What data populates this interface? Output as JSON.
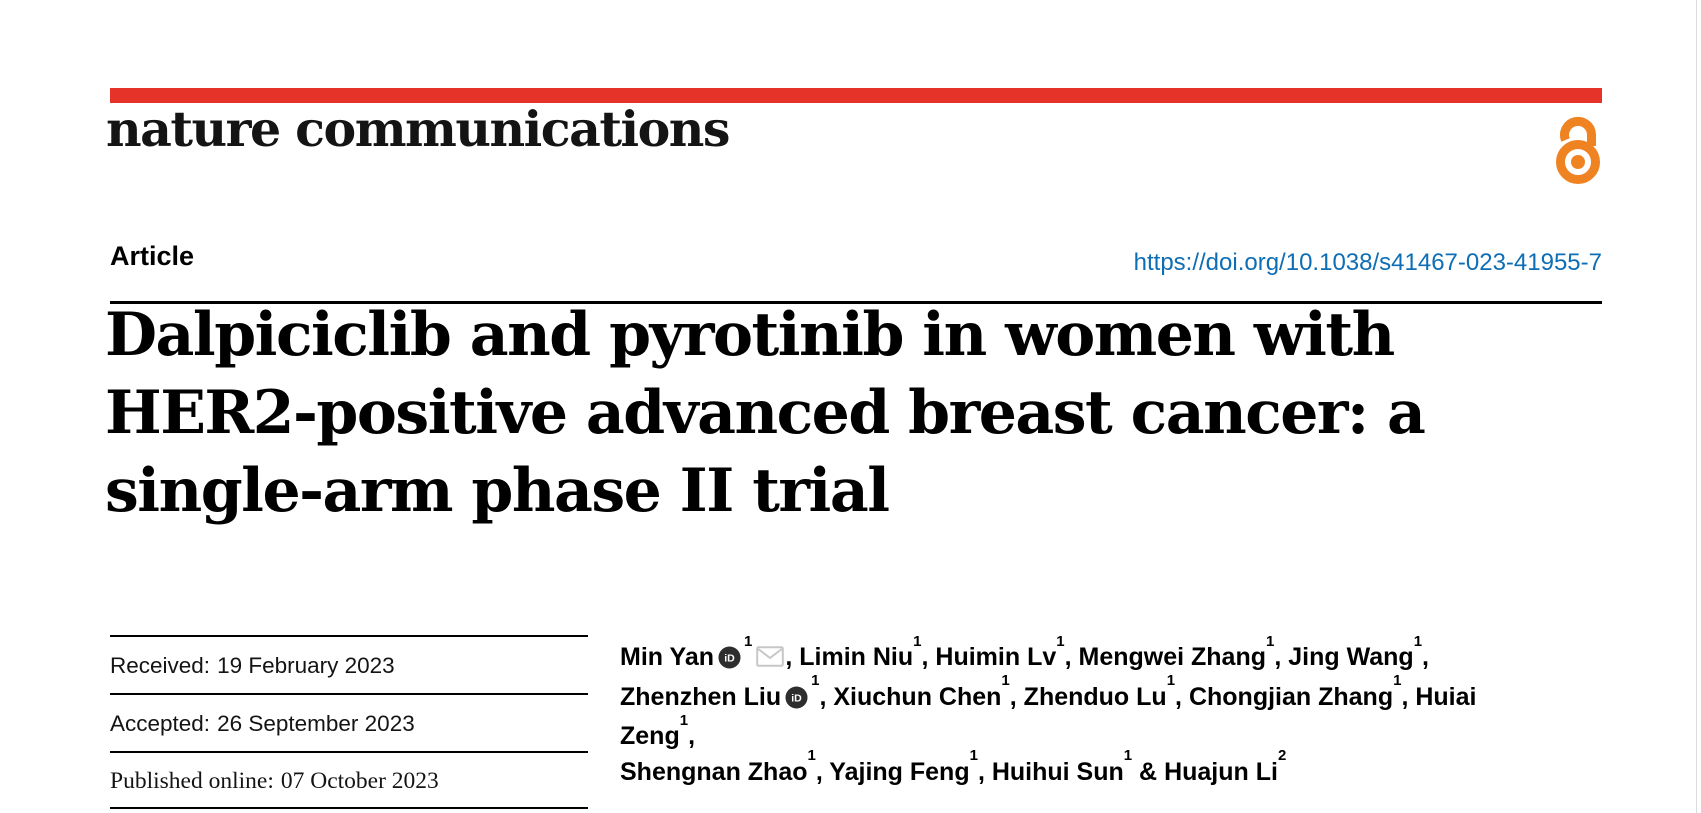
{
  "page": {
    "background": "#ffffff",
    "accent_red": "#e63329",
    "link_blue": "#0e6eb5",
    "oa_orange": "#ef8322",
    "text_black": "#000000"
  },
  "journal": {
    "logo_text": "nature communications"
  },
  "header": {
    "article_label": "Article",
    "doi_link": "https://doi.org/10.1038/s41467-023-41955-7"
  },
  "title": {
    "full": "Dalpiciclib and pyrotinib in women with HER2-positive advanced breast cancer: a single-arm phase II trial",
    "lines": [
      "Dalpiciclib and pyrotinib in women with",
      "HER2-positive advanced breast cancer: a",
      "single-arm phase II trial"
    ]
  },
  "dates": [
    {
      "label": "Received:",
      "value": "19 February 2023"
    },
    {
      "label": "Accepted:",
      "value": "26 September 2023"
    },
    {
      "label": "Published online:",
      "value": "07 October 2023"
    }
  ],
  "authors": {
    "separator": ", ",
    "last_separator": " & ",
    "list": [
      {
        "name": "Min Yan",
        "sup": "1",
        "orcid": true,
        "email": true
      },
      {
        "name": "Limin Niu",
        "sup": "1"
      },
      {
        "name": "Huimin Lv",
        "sup": "1"
      },
      {
        "name": "Mengwei Zhang",
        "sup": "1"
      },
      {
        "name": "Jing Wang",
        "sup": "1",
        "br": true
      },
      {
        "name": "Zhenzhen Liu",
        "sup": "1",
        "orcid": true
      },
      {
        "name": "Xiuchun Chen",
        "sup": "1"
      },
      {
        "name": "Zhenduo Lu",
        "sup": "1"
      },
      {
        "name": "Chongjian Zhang",
        "sup": "1"
      },
      {
        "name": "Huiai Zeng",
        "sup": "1",
        "br": true
      },
      {
        "name": "Shengnan Zhao",
        "sup": "1"
      },
      {
        "name": "Yajing Feng",
        "sup": "1"
      },
      {
        "name": "Huihui Sun",
        "sup": "1"
      },
      {
        "name": "Huajun Li",
        "sup": "2"
      }
    ]
  },
  "icons": {
    "open_access": "open-access-padlock-icon",
    "orcid": "orcid-id-icon",
    "orcid_text": "iD",
    "email": "envelope-icon"
  }
}
